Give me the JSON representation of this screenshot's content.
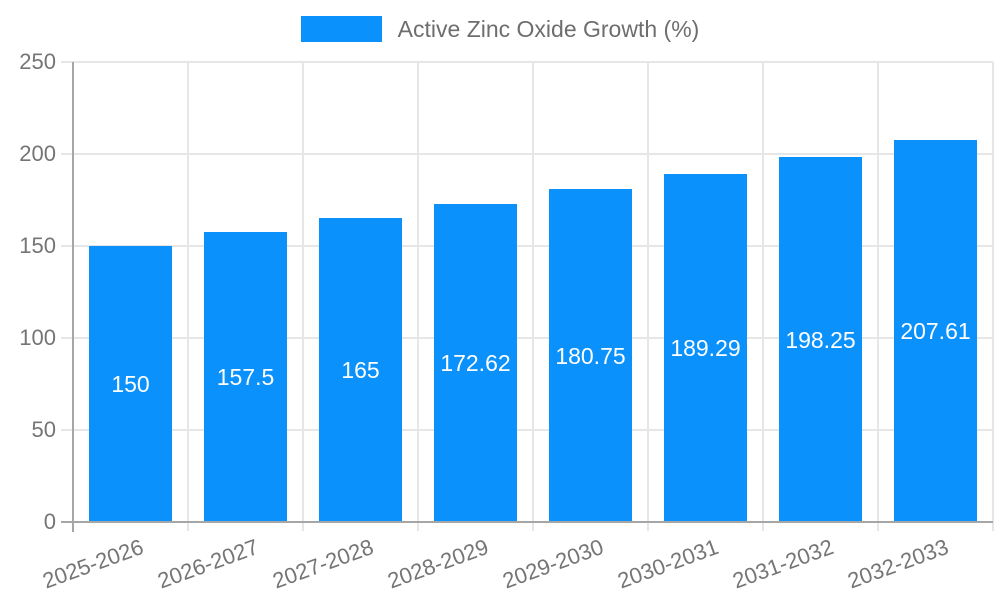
{
  "legend": {
    "label": "Active Zinc Oxide Growth (%)"
  },
  "colors": {
    "bar": "#0a91fb",
    "grid": "#e6e6e6",
    "axis": "#a6a6a6",
    "tick_text": "#757575",
    "legend_text": "#6e6e6e",
    "bar_label_text": "#ffffff"
  },
  "chart_data": {
    "type": "bar",
    "title": "",
    "categories": [
      "2025-2026",
      "2026-2027",
      "2027-2028",
      "2028-2029",
      "2029-2030",
      "2030-2031",
      "2031-2032",
      "2032-2033"
    ],
    "series": [
      {
        "name": "Active Zinc Oxide Growth (%)",
        "values": [
          150,
          157.5,
          165,
          172.62,
          180.75,
          189.29,
          198.25,
          207.61
        ],
        "value_labels": [
          "150",
          "157.5",
          "165",
          "172.62",
          "180.75",
          "189.29",
          "198.25",
          "207.61"
        ],
        "color": "#0a91fb"
      }
    ],
    "xlabel": "",
    "ylabel": "",
    "ylim": [
      0,
      250
    ],
    "yticks": [
      0,
      50,
      100,
      150,
      200,
      250
    ],
    "grid": true,
    "legend_position": "top-center",
    "x_tick_rotation_deg": -20,
    "value_label_position": "inside-middle"
  }
}
